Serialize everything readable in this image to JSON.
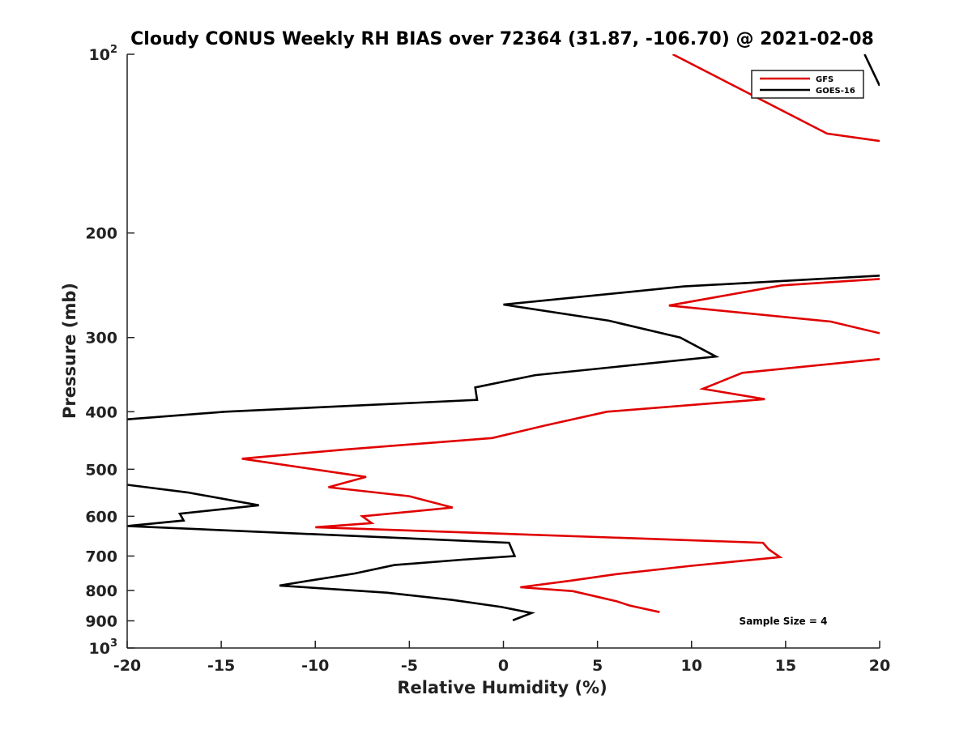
{
  "chart_data": {
    "type": "line",
    "title": "Cloudy CONUS Weekly RH BIAS over 72364 (31.87, -106.70) @ 2021-02-08",
    "xlabel": "Relative Humidity (%)",
    "ylabel": "Pressure (mb)",
    "xlim": [
      -20,
      20
    ],
    "ylim": [
      100,
      1000
    ],
    "y_scale": "log",
    "y_reversed": true,
    "x_ticks": [
      -20,
      -15,
      -10,
      -5,
      0,
      5,
      10,
      15,
      20
    ],
    "x_tick_labels": [
      "-20",
      "-15",
      "-10",
      "-5",
      "0",
      "5",
      "10",
      "15",
      "20"
    ],
    "y_ticks": [
      {
        "value": 100,
        "base": "10",
        "exp": "2"
      },
      {
        "value": 200,
        "label": "200"
      },
      {
        "value": 300,
        "label": "300"
      },
      {
        "value": 400,
        "label": "400"
      },
      {
        "value": 500,
        "label": "500"
      },
      {
        "value": 600,
        "label": "600"
      },
      {
        "value": 700,
        "label": "700"
      },
      {
        "value": 800,
        "label": "800"
      },
      {
        "value": 900,
        "label": "900"
      },
      {
        "value": 1000,
        "base": "10",
        "exp": "3"
      }
    ],
    "grid": false,
    "legend_position": "top-right",
    "series": [
      {
        "name": "GFS",
        "color": "#e00000",
        "points": [
          [
            9.0,
            100
          ],
          [
            17.2,
            136
          ],
          [
            20.0,
            140
          ],
          [
            null,
            null
          ],
          [
            20.0,
            239
          ],
          [
            14.8,
            245
          ],
          [
            8.8,
            265
          ],
          [
            17.4,
            282
          ],
          [
            20.0,
            295
          ],
          [
            null,
            null
          ],
          [
            20.0,
            326
          ],
          [
            12.7,
            344
          ],
          [
            10.6,
            366
          ],
          [
            13.9,
            381
          ],
          [
            5.5,
            400
          ],
          [
            2.2,
            422
          ],
          [
            -0.6,
            443
          ],
          [
            -8.4,
            463
          ],
          [
            -13.9,
            480
          ],
          [
            -7.3,
            515
          ],
          [
            -9.3,
            536
          ],
          [
            -5.0,
            555
          ],
          [
            -2.7,
            580
          ],
          [
            -7.5,
            600
          ],
          [
            -7.0,
            616
          ],
          [
            -10.0,
            626
          ],
          [
            13.8,
            665
          ],
          [
            14.1,
            682
          ],
          [
            14.7,
            703
          ],
          [
            10.0,
            727
          ],
          [
            6.0,
            751
          ],
          [
            3.6,
            770
          ],
          [
            0.9,
            790
          ],
          [
            3.7,
            802
          ],
          [
            5.0,
            820
          ],
          [
            6.0,
            834
          ],
          [
            6.7,
            848
          ],
          [
            8.3,
            870
          ]
        ]
      },
      {
        "name": "GOES-16",
        "color": "#000000",
        "points": [
          [
            19.2,
            100
          ],
          [
            20.0,
            113
          ],
          [
            null,
            null
          ],
          [
            20.0,
            236
          ],
          [
            9.6,
            246
          ],
          [
            0.0,
            264
          ],
          [
            5.6,
            281
          ],
          [
            9.4,
            300
          ],
          [
            11.3,
            323
          ],
          [
            1.7,
            347
          ],
          [
            -1.5,
            364
          ],
          [
            -1.4,
            382
          ],
          [
            -14.8,
            400
          ],
          [
            -20.0,
            412
          ],
          [
            null,
            null
          ],
          [
            -20.0,
            531
          ],
          [
            -16.8,
            547
          ],
          [
            -13.0,
            575
          ],
          [
            -17.2,
            594
          ],
          [
            -17.0,
            610
          ],
          [
            -20.0,
            623
          ],
          [
            0.3,
            665
          ],
          [
            0.6,
            700
          ],
          [
            -2.2,
            710
          ],
          [
            -5.8,
            725
          ],
          [
            -7.9,
            749
          ],
          [
            -10.3,
            770
          ],
          [
            -11.9,
            785
          ],
          [
            -6.2,
            807
          ],
          [
            -2.7,
            830
          ],
          [
            -0.1,
            853
          ],
          [
            1.5,
            873
          ],
          [
            0.5,
            898
          ]
        ]
      }
    ],
    "annotation": "Sample Size = 4"
  }
}
